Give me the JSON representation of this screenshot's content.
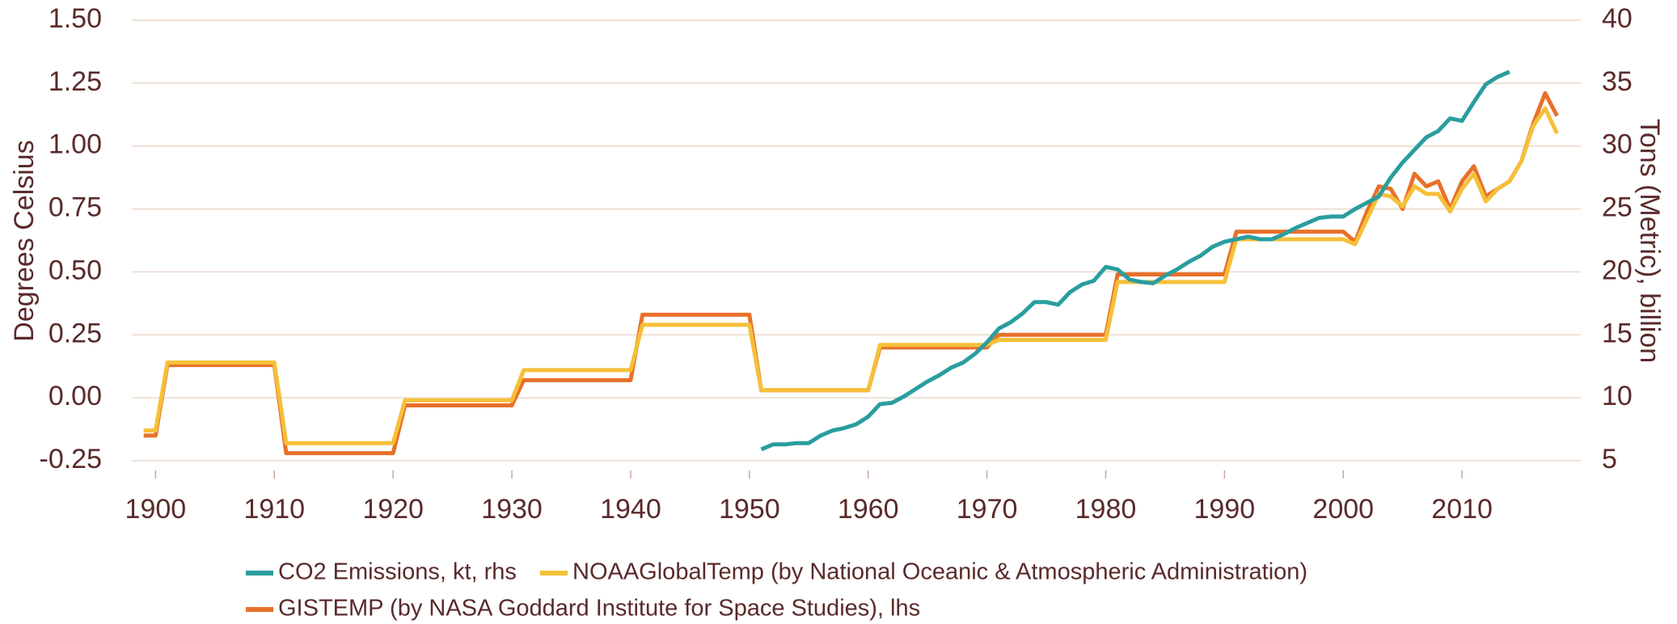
{
  "chart_data": {
    "type": "line",
    "y_label": "Degrees Celsius",
    "y2_label": "Tons (Metric), billion",
    "xlim": [
      1898,
      2020
    ],
    "xticks": [
      1900,
      1910,
      1920,
      1930,
      1940,
      1950,
      1960,
      1970,
      1980,
      1990,
      2000,
      2010
    ],
    "ylim": [
      -0.25,
      1.5
    ],
    "yticks": [
      {
        "value": -0.25,
        "label": "-0.25"
      },
      {
        "value": 0,
        "label": "0.00"
      },
      {
        "value": 0.25,
        "label": "0.25"
      },
      {
        "value": 0.5,
        "label": "0.50"
      },
      {
        "value": 0.75,
        "label": "0.75"
      },
      {
        "value": 1,
        "label": "1.00"
      },
      {
        "value": 1.25,
        "label": "1.25"
      },
      {
        "value": 1.5,
        "label": "1.50"
      }
    ],
    "y2lim": [
      5,
      40
    ],
    "y2ticks": [
      5,
      10,
      15,
      20,
      25,
      30,
      35,
      40
    ],
    "grid": true,
    "legend": "bottom",
    "series": [
      {
        "name": "CO2 Emissions, kt, rhs",
        "color": "#2a9d9f",
        "axis": "y2",
        "x": [
          1951,
          1952,
          1953,
          1954,
          1955,
          1956,
          1957,
          1958,
          1959,
          1960,
          1961,
          1962,
          1963,
          1964,
          1965,
          1966,
          1967,
          1968,
          1969,
          1970,
          1971,
          1972,
          1973,
          1974,
          1975,
          1976,
          1977,
          1978,
          1979,
          1980,
          1981,
          1982,
          1983,
          1984,
          1985,
          1986,
          1987,
          1988,
          1989,
          1990,
          1991,
          1992,
          1993,
          1994,
          1995,
          1996,
          1997,
          1998,
          1999,
          2000,
          2001,
          2002,
          2003,
          2004,
          2005,
          2006,
          2007,
          2008,
          2009,
          2010,
          2011,
          2012,
          2013,
          2014
        ],
        "values": [
          5.9,
          6.3,
          6.3,
          6.4,
          6.4,
          7.0,
          7.4,
          7.6,
          7.9,
          8.5,
          9.5,
          9.6,
          10.1,
          10.7,
          11.3,
          11.8,
          12.4,
          12.8,
          13.5,
          14.4,
          15.5,
          16.0,
          16.7,
          17.6,
          17.6,
          17.4,
          18.4,
          19.0,
          19.3,
          20.4,
          20.2,
          19.4,
          19.2,
          19.1,
          19.7,
          20.2,
          20.8,
          21.3,
          22.0,
          22.4,
          22.6,
          22.8,
          22.6,
          22.6,
          23.0,
          23.5,
          23.9,
          24.3,
          24.4,
          24.4,
          25.0,
          25.5,
          26.0,
          27.5,
          28.7,
          29.7,
          30.7,
          31.2,
          32.2,
          32.0,
          33.5,
          34.9,
          35.5,
          35.9
        ]
      },
      {
        "name": "NOAAGlobalTemp (by National Oceanic & Atmospheric Administration)",
        "color": "#f5c038",
        "x": [
          1899,
          1900,
          1901,
          1910,
          1911,
          1920,
          1921,
          1930,
          1931,
          1940,
          1941,
          1950,
          1951,
          1960,
          1961,
          1970,
          1971,
          1980,
          1981,
          1990,
          1991,
          2000,
          2001,
          2002,
          2003,
          2004,
          2005,
          2006,
          2007,
          2008,
          2009,
          2010,
          2011,
          2012,
          2013,
          2014,
          2015,
          2016,
          2017,
          2018
        ],
        "values": [
          -0.13,
          -0.13,
          0.14,
          0.14,
          -0.18,
          -0.18,
          -0.01,
          -0.01,
          0.11,
          0.11,
          0.29,
          0.29,
          0.03,
          0.03,
          0.21,
          0.21,
          0.23,
          0.23,
          0.46,
          0.46,
          0.63,
          0.63,
          0.61,
          0.71,
          0.81,
          0.8,
          0.76,
          0.84,
          0.81,
          0.81,
          0.74,
          0.83,
          0.89,
          0.78,
          0.83,
          0.86,
          0.94,
          1.08,
          1.15,
          1.05
        ]
      },
      {
        "name": "GISTEMP (by NASA Goddard Institute for Space Studies), lhs",
        "color": "#e8702a",
        "x": [
          1899,
          1900,
          1901,
          1910,
          1911,
          1920,
          1921,
          1930,
          1931,
          1940,
          1941,
          1950,
          1951,
          1960,
          1961,
          1970,
          1971,
          1980,
          1981,
          1990,
          1991,
          2000,
          2001,
          2002,
          2003,
          2004,
          2005,
          2006,
          2007,
          2008,
          2009,
          2010,
          2011,
          2012,
          2013,
          2014,
          2015,
          2016,
          2017,
          2018
        ],
        "values": [
          -0.15,
          -0.15,
          0.13,
          0.13,
          -0.22,
          -0.22,
          -0.03,
          -0.03,
          0.07,
          0.07,
          0.33,
          0.33,
          0.03,
          0.03,
          0.2,
          0.2,
          0.25,
          0.25,
          0.49,
          0.49,
          0.66,
          0.66,
          0.62,
          0.74,
          0.84,
          0.83,
          0.75,
          0.89,
          0.84,
          0.86,
          0.75,
          0.86,
          0.92,
          0.8,
          0.83,
          0.86,
          0.94,
          1.09,
          1.21,
          1.12
        ]
      }
    ]
  }
}
